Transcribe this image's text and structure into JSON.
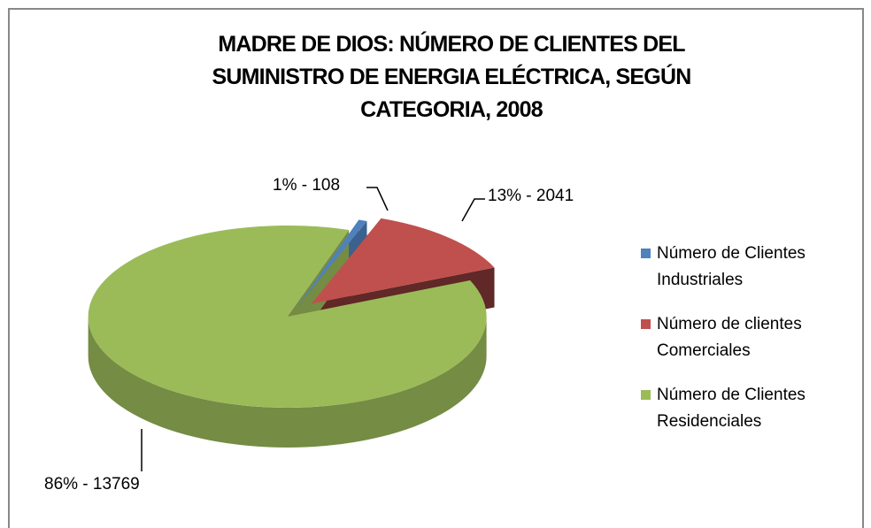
{
  "chart_data": {
    "type": "pie",
    "title": "MADRE DE DIOS: NÚMERO DE CLIENTES DEL SUMINISTRO DE ENERGIA ELÉCTRICA, SEGÚN CATEGORIA, 2008",
    "categories": [
      "Número de Clientes Industriales",
      "Número de clientes Comerciales",
      "Número de Clientes Residenciales"
    ],
    "values": [
      108,
      2041,
      13769
    ],
    "value_labels": [
      "1% - 108",
      "13% - 2041",
      "86% - 13769"
    ],
    "colors": [
      "#4f81bd",
      "#c0504d",
      "#9bbb59"
    ],
    "legend": "right"
  }
}
